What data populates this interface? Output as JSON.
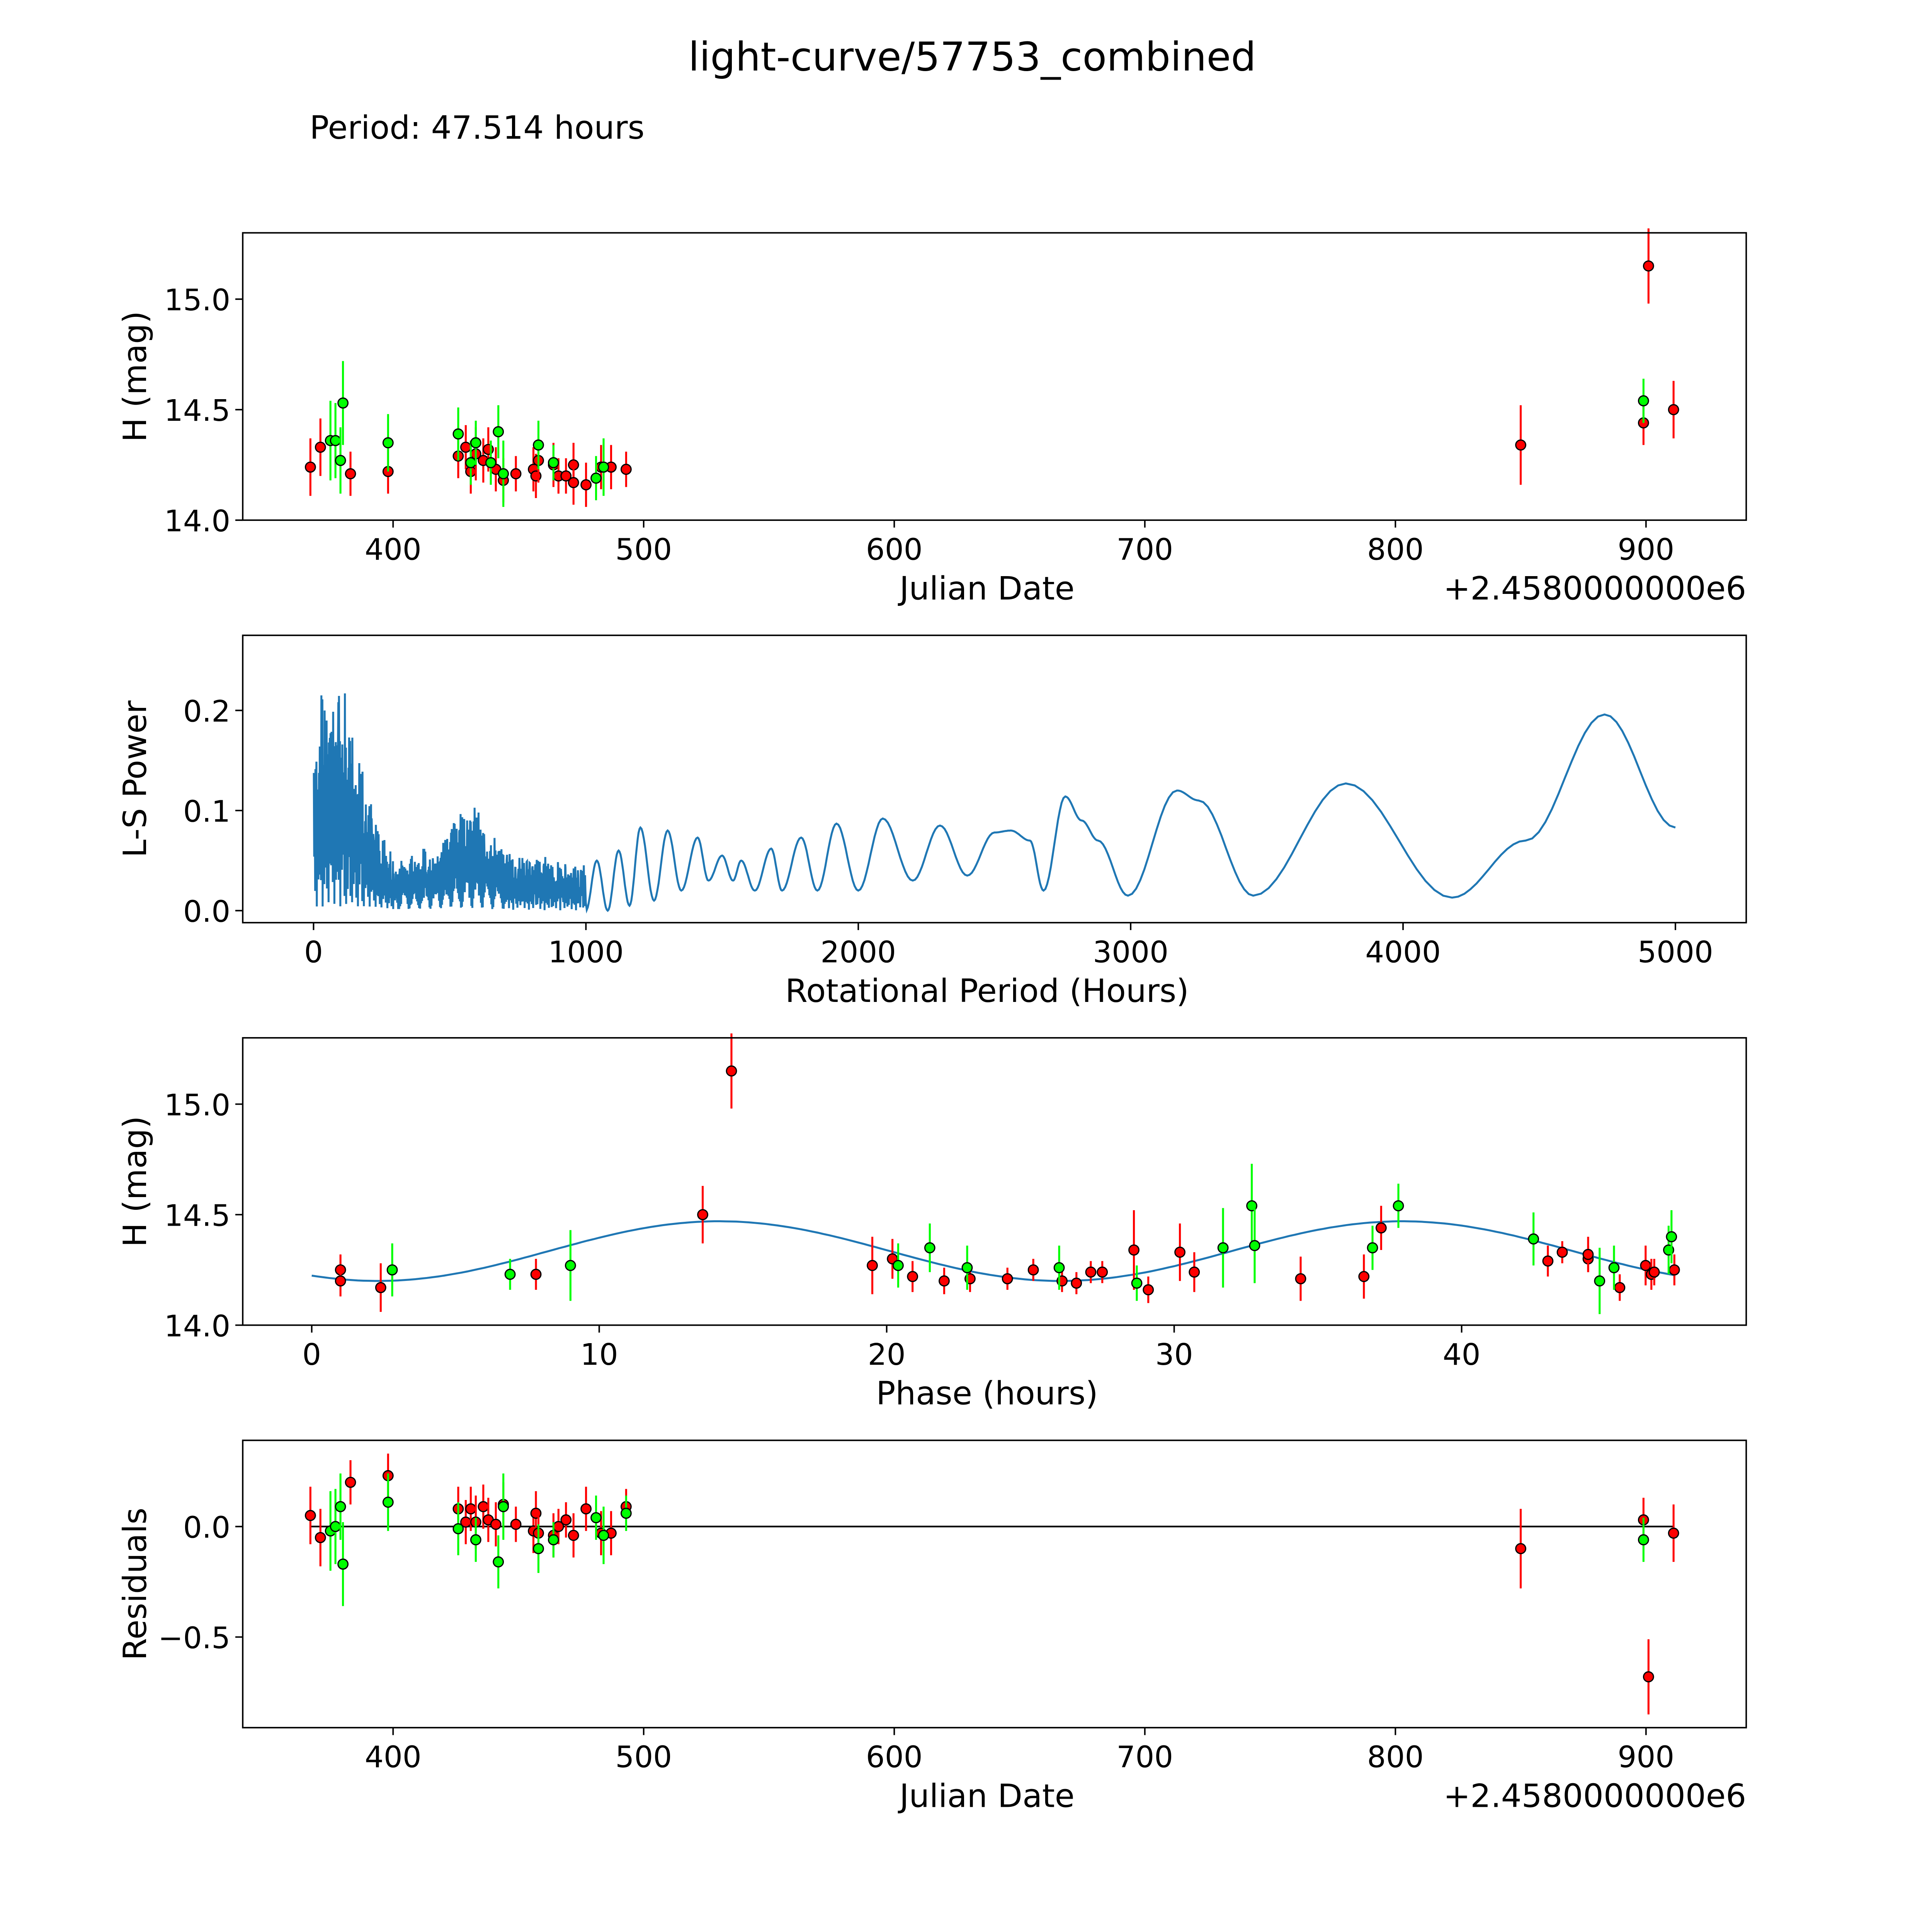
{
  "title": "light-curve/57753_combined",
  "subtitle": "Period: 47.514 hours",
  "colors": {
    "red": "#ff0000",
    "green": "#00ff00",
    "model": "#1f77b4",
    "edge": "#000000"
  },
  "chart_data": [
    {
      "type": "scatter",
      "name": "lightcurve",
      "xlabel": "Julian Date",
      "ylabel": "H (mag)",
      "offset_label": "+2.4580000000e6",
      "xlim": [
        340,
        940
      ],
      "ylim": [
        14.0,
        15.3
      ],
      "xticks": [
        "400",
        "500",
        "600",
        "700",
        "800",
        "900"
      ],
      "xtick_values": [
        400,
        500,
        600,
        700,
        800,
        900
      ],
      "yticks": [
        "14.0",
        "14.5",
        "15.0"
      ],
      "ytick_values": [
        14.0,
        14.5,
        15.0
      ],
      "series": [
        {
          "name": "red",
          "color": "#ff0000",
          "points": [
            [
              367,
              14.24,
              0.13
            ],
            [
              371,
              14.33,
              0.13
            ],
            [
              383,
              14.21,
              0.1
            ],
            [
              398,
              14.22,
              0.1
            ],
            [
              426,
              14.29,
              0.1
            ],
            [
              429,
              14.33,
              0.1
            ],
            [
              431,
              14.22,
              0.1
            ],
            [
              433,
              14.3,
              0.12
            ],
            [
              436,
              14.27,
              0.1
            ],
            [
              438,
              14.32,
              0.1
            ],
            [
              441,
              14.23,
              0.1
            ],
            [
              444,
              14.18,
              0.1
            ],
            [
              449,
              14.21,
              0.08
            ],
            [
              456,
              14.23,
              0.1
            ],
            [
              457,
              14.2,
              0.1
            ],
            [
              458,
              14.27,
              0.1
            ],
            [
              464,
              14.25,
              0.1
            ],
            [
              466,
              14.2,
              0.08
            ],
            [
              469,
              14.2,
              0.08
            ],
            [
              472,
              14.25,
              0.1
            ],
            [
              472,
              14.17,
              0.1
            ],
            [
              477,
              14.16,
              0.1
            ],
            [
              483,
              14.24,
              0.1
            ],
            [
              487,
              14.24,
              0.1
            ],
            [
              493,
              14.23,
              0.08
            ],
            [
              850,
              14.34,
              0.18
            ],
            [
              899,
              14.44,
              0.1
            ],
            [
              901,
              15.15,
              0.17
            ],
            [
              911,
              14.5,
              0.13
            ]
          ]
        },
        {
          "name": "green",
          "color": "#00ff00",
          "points": [
            [
              375,
              14.36,
              0.18
            ],
            [
              377,
              14.36,
              0.17
            ],
            [
              379,
              14.27,
              0.15
            ],
            [
              380,
              14.53,
              0.19
            ],
            [
              398,
              14.35,
              0.13
            ],
            [
              426,
              14.39,
              0.12
            ],
            [
              431,
              14.26,
              0.1
            ],
            [
              433,
              14.35,
              0.1
            ],
            [
              439,
              14.26,
              0.1
            ],
            [
              442,
              14.4,
              0.12
            ],
            [
              444,
              14.21,
              0.15
            ],
            [
              458,
              14.34,
              0.11
            ],
            [
              464,
              14.26,
              0.08
            ],
            [
              481,
              14.19,
              0.1
            ],
            [
              484,
              14.24,
              0.13
            ],
            [
              899,
              14.54,
              0.1
            ]
          ]
        }
      ]
    },
    {
      "type": "line",
      "name": "periodogram",
      "xlabel": "Rotational Period (Hours)",
      "ylabel": "L-S Power",
      "xlim": [
        -260,
        5260
      ],
      "ylim": [
        -0.012,
        0.275
      ],
      "xticks": [
        "0",
        "1000",
        "2000",
        "3000",
        "4000",
        "5000"
      ],
      "xtick_values": [
        0,
        1000,
        2000,
        3000,
        4000,
        5000
      ],
      "yticks": [
        "0.0",
        "0.1",
        "0.2"
      ],
      "ytick_values": [
        0.0,
        0.1,
        0.2
      ],
      "dense_envelope": [
        [
          0,
          0.19
        ],
        [
          60,
          0.26
        ],
        [
          150,
          0.2
        ],
        [
          200,
          0.12
        ],
        [
          300,
          0.05
        ],
        [
          480,
          0.08
        ],
        [
          560,
          0.12
        ],
        [
          700,
          0.065
        ],
        [
          1000,
          0.045
        ]
      ],
      "smooth_points": [
        [
          1000,
          0.0
        ],
        [
          1040,
          0.05
        ],
        [
          1080,
          0.0
        ],
        [
          1120,
          0.06
        ],
        [
          1160,
          0.005
        ],
        [
          1200,
          0.083
        ],
        [
          1250,
          0.01
        ],
        [
          1300,
          0.08
        ],
        [
          1350,
          0.02
        ],
        [
          1410,
          0.073
        ],
        [
          1450,
          0.03
        ],
        [
          1500,
          0.055
        ],
        [
          1540,
          0.03
        ],
        [
          1570,
          0.05
        ],
        [
          1620,
          0.02
        ],
        [
          1680,
          0.062
        ],
        [
          1720,
          0.02
        ],
        [
          1790,
          0.073
        ],
        [
          1850,
          0.02
        ],
        [
          1920,
          0.087
        ],
        [
          2000,
          0.02
        ],
        [
          2090,
          0.092
        ],
        [
          2200,
          0.03
        ],
        [
          2300,
          0.085
        ],
        [
          2400,
          0.035
        ],
        [
          2500,
          0.078
        ],
        [
          2560,
          0.08
        ],
        [
          2630,
          0.07
        ],
        [
          2680,
          0.02
        ],
        [
          2760,
          0.114
        ],
        [
          2820,
          0.09
        ],
        [
          2880,
          0.07
        ],
        [
          2990,
          0.015
        ],
        [
          3170,
          0.12
        ],
        [
          3250,
          0.11
        ],
        [
          3450,
          0.015
        ],
        [
          3790,
          0.127
        ],
        [
          4180,
          0.013
        ],
        [
          4450,
          0.07
        ],
        [
          4740,
          0.196
        ],
        [
          5000,
          0.083
        ]
      ]
    },
    {
      "type": "scatter",
      "name": "phased",
      "xlabel": "Phase (hours)",
      "ylabel": "H (mag)",
      "xlim": [
        -2.4,
        49.9
      ],
      "ylim": [
        14.0,
        15.3
      ],
      "xticks": [
        "0",
        "10",
        "20",
        "30",
        "40"
      ],
      "xtick_values": [
        0,
        10,
        20,
        30,
        40
      ],
      "yticks": [
        "14.0",
        "14.5",
        "15.0"
      ],
      "ytick_values": [
        14.0,
        14.5,
        15.0
      ],
      "model": {
        "mean": 14.335,
        "amplitude": 0.135,
        "phase_min": 2.3,
        "half_period": 23.757,
        "range": [
          0,
          47.514
        ]
      },
      "series": [
        {
          "name": "red",
          "color": "#ff0000",
          "points": [
            [
              1.0,
              14.25,
              0.07
            ],
            [
              1.0,
              14.2,
              0.07
            ],
            [
              2.4,
              14.17,
              0.11
            ],
            [
              7.8,
              14.23,
              0.07
            ],
            [
              13.6,
              14.5,
              0.13
            ],
            [
              14.6,
              15.15,
              0.17
            ],
            [
              19.5,
              14.27,
              0.13
            ],
            [
              20.2,
              14.3,
              0.09
            ],
            [
              20.9,
              14.22,
              0.07
            ],
            [
              22.0,
              14.2,
              0.06
            ],
            [
              22.9,
              14.21,
              0.06
            ],
            [
              24.2,
              14.21,
              0.05
            ],
            [
              25.1,
              14.25,
              0.05
            ],
            [
              26.1,
              14.2,
              0.05
            ],
            [
              26.6,
              14.19,
              0.05
            ],
            [
              27.1,
              14.24,
              0.05
            ],
            [
              27.5,
              14.24,
              0.05
            ],
            [
              28.6,
              14.34,
              0.18
            ],
            [
              29.1,
              14.16,
              0.06
            ],
            [
              30.2,
              14.33,
              0.13
            ],
            [
              30.7,
              14.24,
              0.09
            ],
            [
              34.4,
              14.21,
              0.1
            ],
            [
              36.6,
              14.22,
              0.1
            ],
            [
              37.2,
              14.44,
              0.1
            ],
            [
              43.0,
              14.29,
              0.07
            ],
            [
              43.5,
              14.33,
              0.05
            ],
            [
              44.4,
              14.3,
              0.06
            ],
            [
              44.4,
              14.32,
              0.08
            ],
            [
              45.5,
              14.17,
              0.06
            ],
            [
              46.4,
              14.27,
              0.09
            ],
            [
              46.6,
              14.23,
              0.07
            ],
            [
              46.7,
              14.24,
              0.06
            ],
            [
              47.4,
              14.25,
              0.07
            ]
          ]
        },
        {
          "name": "green",
          "color": "#00ff00",
          "points": [
            [
              2.8,
              14.25,
              0.12
            ],
            [
              6.9,
              14.23,
              0.07
            ],
            [
              9.0,
              14.27,
              0.16
            ],
            [
              20.4,
              14.27,
              0.1
            ],
            [
              21.5,
              14.35,
              0.11
            ],
            [
              22.8,
              14.26,
              0.1
            ],
            [
              26.0,
              14.26,
              0.1
            ],
            [
              28.7,
              14.19,
              0.08
            ],
            [
              31.7,
              14.35,
              0.18
            ],
            [
              32.7,
              14.54,
              0.19
            ],
            [
              32.8,
              14.36,
              0.17
            ],
            [
              36.9,
              14.35,
              0.1
            ],
            [
              37.8,
              14.54,
              0.1
            ],
            [
              42.5,
              14.39,
              0.12
            ],
            [
              44.8,
              14.2,
              0.15
            ],
            [
              45.3,
              14.26,
              0.1
            ],
            [
              47.2,
              14.34,
              0.11
            ],
            [
              47.3,
              14.4,
              0.12
            ]
          ]
        }
      ]
    },
    {
      "type": "scatter",
      "name": "residuals",
      "xlabel": "Julian Date",
      "ylabel": "Residuals",
      "offset_label": "+2.4580000000e6",
      "xlim": [
        340,
        940
      ],
      "ylim": [
        -0.91,
        0.39
      ],
      "xticks": [
        "400",
        "500",
        "600",
        "700",
        "800",
        "900"
      ],
      "xtick_values": [
        400,
        500,
        600,
        700,
        800,
        900
      ],
      "yticks": [
        "−0.5",
        "0.0"
      ],
      "ytick_values": [
        -0.5,
        0.0
      ],
      "series": [
        {
          "name": "red",
          "color": "#ff0000",
          "points": [
            [
              367,
              0.05,
              0.13
            ],
            [
              371,
              -0.05,
              0.13
            ],
            [
              383,
              0.2,
              0.1
            ],
            [
              398,
              0.23,
              0.1
            ],
            [
              426,
              0.08,
              0.1
            ],
            [
              429,
              0.02,
              0.1
            ],
            [
              431,
              0.08,
              0.1
            ],
            [
              433,
              0.02,
              0.12
            ],
            [
              436,
              0.09,
              0.1
            ],
            [
              438,
              0.03,
              0.1
            ],
            [
              441,
              0.01,
              0.1
            ],
            [
              444,
              0.1,
              0.1
            ],
            [
              449,
              0.01,
              0.08
            ],
            [
              456,
              -0.02,
              0.1
            ],
            [
              457,
              0.06,
              0.1
            ],
            [
              458,
              -0.03,
              0.1
            ],
            [
              464,
              -0.04,
              0.1
            ],
            [
              466,
              0.0,
              0.08
            ],
            [
              469,
              0.03,
              0.08
            ],
            [
              472,
              -0.04,
              0.1
            ],
            [
              477,
              0.08,
              0.1
            ],
            [
              483,
              -0.03,
              0.1
            ],
            [
              487,
              -0.03,
              0.1
            ],
            [
              493,
              0.09,
              0.08
            ],
            [
              850,
              -0.1,
              0.18
            ],
            [
              899,
              0.03,
              0.1
            ],
            [
              901,
              -0.68,
              0.17
            ],
            [
              911,
              -0.03,
              0.13
            ]
          ]
        },
        {
          "name": "green",
          "color": "#00ff00",
          "points": [
            [
              375,
              -0.02,
              0.18
            ],
            [
              377,
              0.0,
              0.17
            ],
            [
              379,
              0.09,
              0.15
            ],
            [
              380,
              -0.17,
              0.19
            ],
            [
              398,
              0.11,
              0.13
            ],
            [
              426,
              -0.01,
              0.12
            ],
            [
              433,
              -0.06,
              0.1
            ],
            [
              442,
              -0.16,
              0.12
            ],
            [
              444,
              0.09,
              0.15
            ],
            [
              458,
              -0.1,
              0.11
            ],
            [
              464,
              -0.06,
              0.08
            ],
            [
              481,
              0.04,
              0.1
            ],
            [
              484,
              -0.04,
              0.13
            ],
            [
              493,
              0.06,
              0.08
            ],
            [
              899,
              -0.06,
              0.1
            ]
          ]
        }
      ]
    }
  ]
}
